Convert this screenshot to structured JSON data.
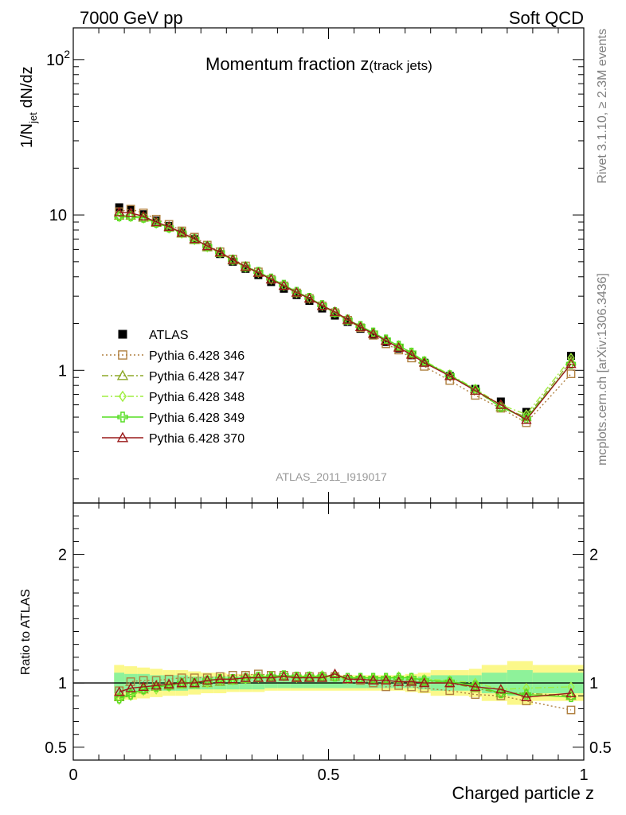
{
  "header": {
    "left": "7000 GeV pp",
    "right": "Soft QCD"
  },
  "side_text": {
    "rivet": "Rivet 3.1.10, ≥ 2.3M events",
    "mcplots": "mcplots.cern.ch [arXiv:1306.3436]"
  },
  "chart_data": [
    {
      "type": "line",
      "title": "Momentum fraction z(track jets)",
      "title_main": "Momentum fraction z",
      "title_sub": "(track jets)",
      "ylabel": "1/N_jet dN/dz",
      "yscale": "log",
      "ylim": [
        0.14,
        160
      ],
      "xlim": [
        0,
        1
      ],
      "x_ticks": [
        0,
        0.5,
        1
      ],
      "y_ticks": [
        {
          "value": 100,
          "label": "10",
          "sup": "2"
        },
        {
          "value": 10,
          "label": "10",
          "sup": ""
        },
        {
          "value": 1,
          "label": "1",
          "sup": ""
        }
      ],
      "watermark": "ATLAS_2011_I919017",
      "legend_position": "center-left",
      "x": [
        0.09,
        0.1125,
        0.1375,
        0.1625,
        0.1875,
        0.2125,
        0.2375,
        0.2625,
        0.2875,
        0.3125,
        0.3375,
        0.3625,
        0.3875,
        0.4125,
        0.4375,
        0.4625,
        0.4875,
        0.5125,
        0.5375,
        0.5625,
        0.5875,
        0.6125,
        0.6375,
        0.6625,
        0.6875,
        0.7375,
        0.7875,
        0.8375,
        0.8875,
        0.975
      ],
      "x_bins": [
        [
          0.08,
          0.1
        ],
        [
          0.1,
          0.125
        ],
        [
          0.125,
          0.15
        ],
        [
          0.15,
          0.175
        ],
        [
          0.175,
          0.2
        ],
        [
          0.2,
          0.225
        ],
        [
          0.225,
          0.25
        ],
        [
          0.25,
          0.275
        ],
        [
          0.275,
          0.3
        ],
        [
          0.3,
          0.325
        ],
        [
          0.325,
          0.35
        ],
        [
          0.35,
          0.375
        ],
        [
          0.375,
          0.4
        ],
        [
          0.4,
          0.425
        ],
        [
          0.425,
          0.45
        ],
        [
          0.45,
          0.475
        ],
        [
          0.475,
          0.5
        ],
        [
          0.5,
          0.525
        ],
        [
          0.525,
          0.55
        ],
        [
          0.55,
          0.575
        ],
        [
          0.575,
          0.6
        ],
        [
          0.6,
          0.625
        ],
        [
          0.625,
          0.65
        ],
        [
          0.65,
          0.675
        ],
        [
          0.675,
          0.7
        ],
        [
          0.7,
          0.775
        ],
        [
          0.775,
          0.8
        ],
        [
          0.8,
          0.85
        ],
        [
          0.85,
          0.9
        ],
        [
          0.9,
          1.0
        ]
      ],
      "series": [
        {
          "name": "ATLAS",
          "color": "#000000",
          "marker": "square-filled",
          "line": "none",
          "values": [
            11.2,
            10.8,
            10.1,
            9.2,
            8.5,
            7.7,
            7.0,
            6.2,
            5.6,
            5.0,
            4.5,
            4.1,
            3.7,
            3.35,
            3.05,
            2.8,
            2.5,
            2.25,
            2.05,
            1.85,
            1.68,
            1.52,
            1.38,
            1.25,
            1.12,
            0.92,
            0.76,
            0.63,
            0.54,
            1.24
          ]
        },
        {
          "name": "Pythia 6.428 346",
          "color": "#b08040",
          "marker": "square-open",
          "line": "dotted",
          "values": [
            10.5,
            10.9,
            10.3,
            9.4,
            8.7,
            7.9,
            7.2,
            6.4,
            5.8,
            5.2,
            4.7,
            4.3,
            3.85,
            3.5,
            3.15,
            2.9,
            2.6,
            2.35,
            2.1,
            1.88,
            1.68,
            1.48,
            1.35,
            1.2,
            1.06,
            0.86,
            0.69,
            0.57,
            0.46,
            0.95
          ]
        },
        {
          "name": "Pythia 6.428 347",
          "color": "#8da828",
          "marker": "triangle-open",
          "line": "dashdot",
          "values": [
            9.9,
            9.9,
            9.6,
            8.9,
            8.3,
            7.6,
            6.9,
            6.2,
            5.7,
            5.1,
            4.6,
            4.25,
            3.85,
            3.5,
            3.15,
            2.9,
            2.6,
            2.35,
            2.1,
            1.9,
            1.72,
            1.56,
            1.42,
            1.28,
            1.13,
            0.92,
            0.74,
            0.58,
            0.5,
            1.15
          ]
        },
        {
          "name": "Pythia 6.428 348",
          "color": "#a0ee40",
          "marker": "diamond-open",
          "line": "dashdot",
          "values": [
            9.7,
            9.7,
            9.5,
            8.8,
            8.2,
            7.6,
            6.9,
            6.2,
            5.7,
            5.1,
            4.6,
            4.25,
            3.85,
            3.5,
            3.15,
            2.9,
            2.6,
            2.35,
            2.1,
            1.92,
            1.75,
            1.58,
            1.45,
            1.3,
            1.15,
            0.94,
            0.76,
            0.6,
            0.52,
            1.2
          ]
        },
        {
          "name": "Pythia 6.428 349",
          "color": "#55dd22",
          "marker": "cross-open",
          "line": "solid",
          "values": [
            9.8,
            9.8,
            9.6,
            8.9,
            8.3,
            7.7,
            7.0,
            6.3,
            5.75,
            5.15,
            4.65,
            4.3,
            3.9,
            3.55,
            3.2,
            2.93,
            2.63,
            2.37,
            2.12,
            1.93,
            1.75,
            1.58,
            1.44,
            1.3,
            1.14,
            0.93,
            0.75,
            0.58,
            0.49,
            1.1
          ]
        },
        {
          "name": "Pythia 6.428 370",
          "color": "#9a1a1a",
          "marker": "triangle-open",
          "line": "solid",
          "values": [
            10.4,
            10.3,
            9.8,
            9.0,
            8.4,
            7.7,
            7.0,
            6.3,
            5.75,
            5.15,
            4.65,
            4.25,
            3.85,
            3.5,
            3.17,
            2.9,
            2.6,
            2.38,
            2.12,
            1.9,
            1.72,
            1.55,
            1.4,
            1.26,
            1.12,
            0.92,
            0.74,
            0.6,
            0.48,
            1.1
          ]
        }
      ]
    },
    {
      "type": "line",
      "title": "",
      "xlabel": "Charged particle z",
      "ylabel": "Ratio to ATLAS",
      "ylim": [
        0.4,
        2.4
      ],
      "y_ticks": [
        {
          "value": 2,
          "label": "2"
        },
        {
          "value": 1,
          "label": "1"
        },
        {
          "value": 0.5,
          "label": "0.5"
        }
      ],
      "x_ticks": [
        {
          "value": 0,
          "label": "0"
        },
        {
          "value": 0.5,
          "label": "0.5"
        },
        {
          "value": 1,
          "label": "1"
        }
      ],
      "band_inner": [
        0.08,
        0.07,
        0.07,
        0.06,
        0.06,
        0.06,
        0.05,
        0.05,
        0.05,
        0.05,
        0.05,
        0.05,
        0.04,
        0.04,
        0.04,
        0.04,
        0.04,
        0.04,
        0.04,
        0.04,
        0.04,
        0.04,
        0.04,
        0.04,
        0.05,
        0.06,
        0.06,
        0.08,
        0.1,
        0.08
      ],
      "band_outer": [
        0.14,
        0.13,
        0.12,
        0.11,
        0.1,
        0.1,
        0.09,
        0.08,
        0.08,
        0.07,
        0.07,
        0.07,
        0.06,
        0.06,
        0.06,
        0.06,
        0.06,
        0.06,
        0.06,
        0.06,
        0.06,
        0.06,
        0.06,
        0.07,
        0.08,
        0.1,
        0.11,
        0.14,
        0.17,
        0.14
      ],
      "series": [
        {
          "name": "Pythia 6.428 346",
          "color": "#b08040",
          "marker": "square-open",
          "line": "dotted",
          "values": [
            0.94,
            1.01,
            1.02,
            1.02,
            1.03,
            1.04,
            1.04,
            1.04,
            1.05,
            1.06,
            1.06,
            1.07,
            1.06,
            1.06,
            1.05,
            1.05,
            1.05,
            1.05,
            1.03,
            1.02,
            1.0,
            0.97,
            0.98,
            0.97,
            0.96,
            0.94,
            0.91,
            0.9,
            0.86,
            0.79
          ]
        },
        {
          "name": "Pythia 6.428 347",
          "color": "#8da828",
          "marker": "triangle-open",
          "line": "dashdot",
          "values": [
            0.89,
            0.92,
            0.95,
            0.97,
            0.98,
            0.99,
            0.99,
            1.0,
            1.01,
            1.02,
            1.03,
            1.04,
            1.05,
            1.05,
            1.04,
            1.05,
            1.05,
            1.05,
            1.03,
            1.03,
            1.03,
            1.03,
            1.03,
            1.02,
            1.01,
            1.0,
            0.96,
            0.92,
            0.92,
            0.9
          ]
        },
        {
          "name": "Pythia 6.428 348",
          "color": "#a0ee40",
          "marker": "diamond-open",
          "line": "dashdot",
          "values": [
            0.87,
            0.9,
            0.94,
            0.95,
            0.97,
            0.99,
            0.99,
            1.0,
            1.02,
            1.02,
            1.03,
            1.04,
            1.05,
            1.05,
            1.04,
            1.05,
            1.06,
            1.05,
            1.03,
            1.04,
            1.04,
            1.04,
            1.05,
            1.04,
            1.03,
            1.02,
            1.0,
            0.95,
            0.96,
            0.97
          ]
        },
        {
          "name": "Pythia 6.428 349",
          "color": "#55dd22",
          "marker": "cross-open",
          "line": "solid",
          "values": [
            0.88,
            0.91,
            0.95,
            0.97,
            0.98,
            1.0,
            1.0,
            1.02,
            1.03,
            1.03,
            1.04,
            1.05,
            1.05,
            1.06,
            1.05,
            1.05,
            1.05,
            1.05,
            1.04,
            1.04,
            1.04,
            1.04,
            1.04,
            1.04,
            1.02,
            1.01,
            0.98,
            0.92,
            0.91,
            0.89
          ]
        },
        {
          "name": "Pythia 6.428 370",
          "color": "#9a1a1a",
          "marker": "triangle-open",
          "line": "solid",
          "values": [
            0.93,
            0.96,
            0.97,
            0.98,
            0.99,
            1.0,
            1.0,
            1.02,
            1.03,
            1.03,
            1.04,
            1.04,
            1.04,
            1.05,
            1.04,
            1.04,
            1.04,
            1.07,
            1.03,
            1.03,
            1.02,
            1.02,
            1.01,
            1.01,
            1.0,
            1.0,
            0.97,
            0.95,
            0.89,
            0.92
          ]
        }
      ]
    }
  ]
}
